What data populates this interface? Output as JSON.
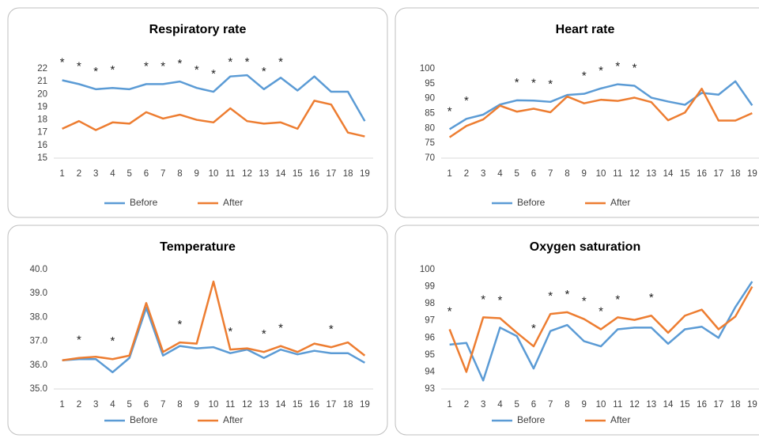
{
  "chart_data": [
    {
      "type": "line",
      "title": "Respiratory rate",
      "categories": [
        "1",
        "2",
        "3",
        "4",
        "5",
        "6",
        "7",
        "8",
        "9",
        "10",
        "11",
        "12",
        "13",
        "14",
        "15",
        "16",
        "17",
        "18",
        "19"
      ],
      "series": [
        {
          "name": "Before",
          "color": "#5b9bd5",
          "values": [
            21.1,
            20.8,
            20.4,
            20.5,
            20.4,
            20.8,
            20.8,
            21.0,
            20.5,
            20.2,
            21.4,
            21.5,
            20.4,
            21.3,
            20.3,
            21.4,
            20.2,
            20.2,
            17.9
          ]
        },
        {
          "name": "After",
          "color": "#ed7d31",
          "values": [
            17.3,
            17.9,
            17.2,
            17.8,
            17.7,
            18.6,
            18.1,
            18.4,
            18.0,
            17.8,
            18.9,
            17.9,
            17.7,
            17.8,
            17.3,
            19.5,
            19.2,
            17.0,
            16.7
          ]
        }
      ],
      "ylim": [
        15,
        22
      ],
      "yticks": [
        15,
        16,
        17,
        18,
        19,
        20,
        21,
        22
      ],
      "grid": false,
      "legend": "bottom",
      "annotations": [
        {
          "x": "1",
          "text": "*"
        },
        {
          "x": "2",
          "text": "*"
        },
        {
          "x": "3",
          "text": "*"
        },
        {
          "x": "4",
          "text": "*"
        },
        {
          "x": "6",
          "text": "*"
        },
        {
          "x": "7",
          "text": "*"
        },
        {
          "x": "8",
          "text": "*"
        },
        {
          "x": "9",
          "text": "*"
        },
        {
          "x": "10",
          "text": "*"
        },
        {
          "x": "11",
          "text": "*"
        },
        {
          "x": "12",
          "text": "*"
        },
        {
          "x": "13",
          "text": "*"
        },
        {
          "x": "14",
          "text": "*"
        }
      ]
    },
    {
      "type": "line",
      "title": "Heart rate",
      "categories": [
        "1",
        "2",
        "3",
        "4",
        "5",
        "6",
        "7",
        "8",
        "9",
        "10",
        "11",
        "12",
        "13",
        "14",
        "15",
        "16",
        "17",
        "18",
        "19"
      ],
      "series": [
        {
          "name": "Before",
          "color": "#5b9bd5",
          "values": [
            79.7,
            83.2,
            84.6,
            88.0,
            89.4,
            89.3,
            88.9,
            91.2,
            91.6,
            93.4,
            94.8,
            94.3,
            90.3,
            89.0,
            87.9,
            91.9,
            91.3,
            95.8,
            87.7
          ]
        },
        {
          "name": "After",
          "color": "#ed7d31",
          "values": [
            77.0,
            80.8,
            83.0,
            87.6,
            85.6,
            86.6,
            85.4,
            90.7,
            88.4,
            89.6,
            89.2,
            90.3,
            88.8,
            82.7,
            85.3,
            93.3,
            82.6,
            82.6,
            85.1
          ]
        }
      ],
      "ylim": [
        70,
        100
      ],
      "yticks": [
        70,
        75,
        80,
        85,
        90,
        95,
        100
      ],
      "grid": false,
      "legend": "bottom",
      "annotations": [
        {
          "x": "1",
          "text": "*"
        },
        {
          "x": "2",
          "text": "*"
        },
        {
          "x": "5",
          "text": "*"
        },
        {
          "x": "6",
          "text": "*"
        },
        {
          "x": "7",
          "text": "*"
        },
        {
          "x": "9",
          "text": "*"
        },
        {
          "x": "10",
          "text": "*"
        },
        {
          "x": "11",
          "text": "*"
        },
        {
          "x": "12",
          "text": "*"
        }
      ]
    },
    {
      "type": "line",
      "title": "Temperature",
      "categories": [
        "1",
        "2",
        "3",
        "4",
        "5",
        "6",
        "7",
        "8",
        "9",
        "10",
        "11",
        "12",
        "13",
        "14",
        "15",
        "16",
        "17",
        "18",
        "19"
      ],
      "series": [
        {
          "name": "Before",
          "color": "#5b9bd5",
          "values": [
            36.2,
            36.25,
            36.25,
            35.7,
            36.3,
            38.4,
            36.4,
            36.8,
            36.7,
            36.75,
            36.5,
            36.65,
            36.3,
            36.65,
            36.45,
            36.6,
            36.5,
            36.5,
            36.1
          ]
        },
        {
          "name": "After",
          "color": "#ed7d31",
          "values": [
            36.2,
            36.3,
            36.35,
            36.25,
            36.4,
            38.6,
            36.55,
            36.95,
            36.9,
            39.5,
            36.65,
            36.7,
            36.55,
            36.8,
            36.55,
            36.9,
            36.75,
            36.95,
            36.4
          ]
        }
      ],
      "ylim": [
        35,
        40
      ],
      "yticks": [
        {
          "value": 35,
          "label": "35.0"
        },
        {
          "value": 36,
          "label": "36.0"
        },
        {
          "value": 37,
          "label": "37.0"
        },
        {
          "value": 38,
          "label": "38.0"
        },
        {
          "value": 39,
          "label": "39.0"
        },
        {
          "value": 40,
          "label": "40.0"
        }
      ],
      "grid": false,
      "legend": "bottom",
      "annotations": [
        {
          "x": "2",
          "text": "*"
        },
        {
          "x": "4",
          "text": "*"
        },
        {
          "x": "8",
          "text": "*"
        },
        {
          "x": "11",
          "text": "*"
        },
        {
          "x": "13",
          "text": "*"
        },
        {
          "x": "14",
          "text": "*"
        },
        {
          "x": "17",
          "text": "*"
        }
      ]
    },
    {
      "type": "line",
      "title": "Oxygen saturation",
      "categories": [
        "1",
        "2",
        "3",
        "4",
        "5",
        "6",
        "7",
        "8",
        "9",
        "10",
        "11",
        "12",
        "13",
        "14",
        "15",
        "16",
        "17",
        "18",
        "19"
      ],
      "series": [
        {
          "name": "Before",
          "color": "#5b9bd5",
          "values": [
            95.6,
            95.7,
            93.5,
            96.6,
            96.1,
            94.2,
            96.4,
            96.75,
            95.8,
            95.5,
            96.5,
            96.6,
            96.6,
            95.65,
            96.5,
            96.65,
            96.0,
            97.8,
            99.3
          ]
        },
        {
          "name": "After",
          "color": "#ed7d31",
          "values": [
            96.5,
            94.0,
            97.2,
            97.15,
            96.3,
            95.5,
            97.4,
            97.5,
            97.1,
            96.5,
            97.2,
            97.05,
            97.3,
            96.3,
            97.3,
            97.65,
            96.5,
            97.25,
            99.0
          ]
        }
      ],
      "ylim": [
        93,
        100
      ],
      "yticks": [
        93,
        94,
        95,
        96,
        97,
        98,
        99,
        100
      ],
      "grid": false,
      "legend": "bottom",
      "annotations": [
        {
          "x": "1",
          "text": "*"
        },
        {
          "x": "3",
          "text": "*"
        },
        {
          "x": "4",
          "text": "*"
        },
        {
          "x": "6",
          "text": "*"
        },
        {
          "x": "7",
          "text": "*"
        },
        {
          "x": "8",
          "text": "*"
        },
        {
          "x": "9",
          "text": "*"
        },
        {
          "x": "10",
          "text": "*"
        },
        {
          "x": "11",
          "text": "*"
        },
        {
          "x": "13",
          "text": "*"
        }
      ]
    }
  ]
}
